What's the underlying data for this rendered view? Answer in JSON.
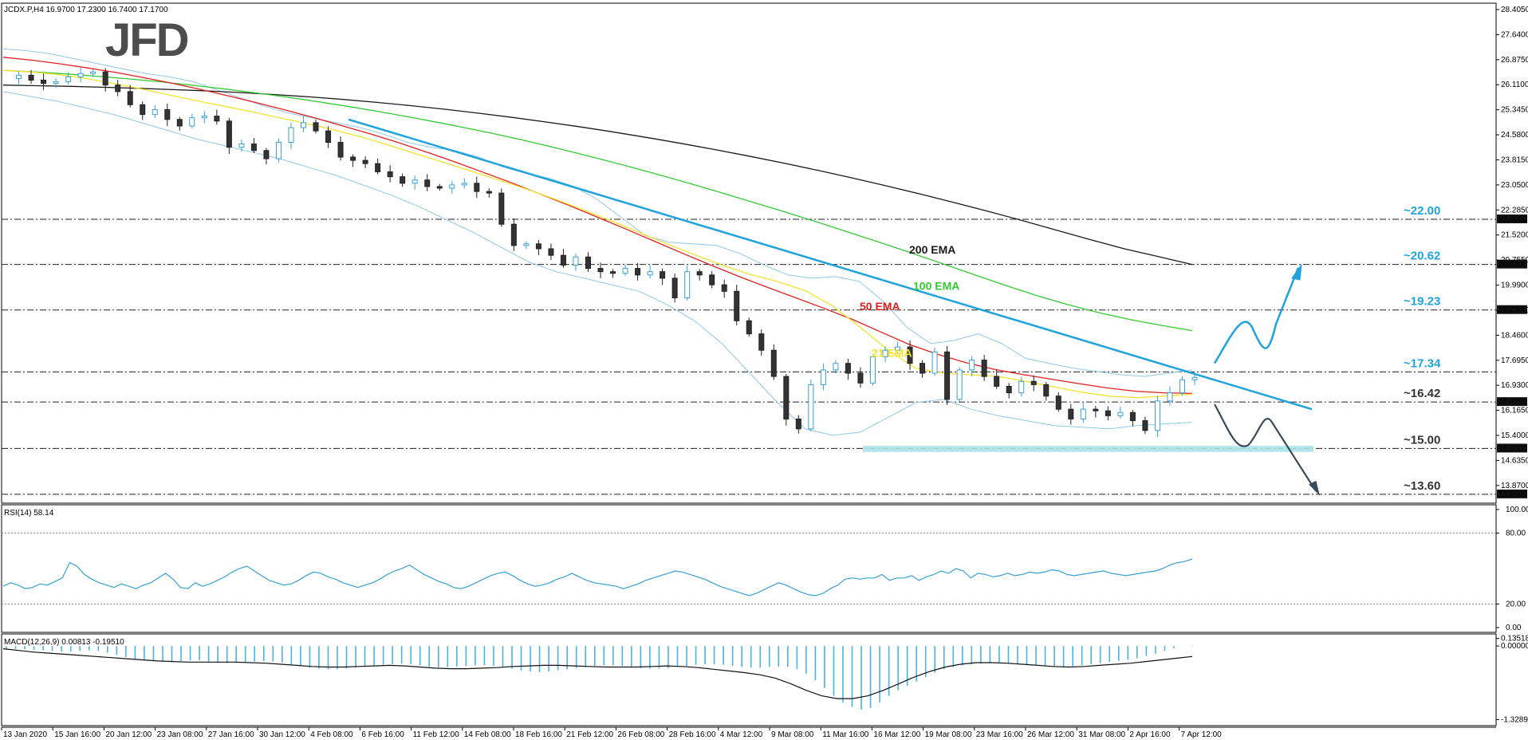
{
  "header": {
    "info": "JCDX.P,H4  16.9700 17.2300 16.7400 17.1700"
  },
  "logo": {
    "text": "JFD"
  },
  "colors": {
    "ema21": "#f2e330",
    "ema50": "#e02020",
    "ema100": "#35c935",
    "ema200": "#1a1a1a",
    "bollinger": "#8fc9ea",
    "trendline": "#1fa3dd",
    "arrow_up": "#1fa3dd",
    "arrow_down": "#3a4a56",
    "support_zone": "#a8e3ea",
    "level_label_blue": "#1fa3dd",
    "level_label_dark": "#333333"
  },
  "chart_data": [
    {
      "type": "candlestick",
      "symbol": "JCDX.P",
      "timeframe": "H4",
      "ohlc_last": {
        "open": 16.97,
        "high": 17.23,
        "low": 16.74,
        "close": 17.17
      },
      "ylim": [
        13.33,
        28.6
      ],
      "y_ticks": [
        "28.4050",
        "27.6400",
        "26.8750",
        "26.1100",
        "25.3450",
        "24.5800",
        "23.8150",
        "23.0500",
        "22.2850",
        "21.5200",
        "20.7550",
        "19.9900",
        "19.2250",
        "18.4600",
        "17.6950",
        "16.9300",
        "16.1650",
        "15.4000",
        "14.6350",
        "13.8700"
      ],
      "x_ticks": [
        "13 Jan 2020",
        "15 Jan 16:00",
        "20 Jan 12:00",
        "23 Jan 08:00",
        "27 Jan 16:00",
        "30 Jan 12:00",
        "4 Feb 08:00",
        "6 Feb 16:00",
        "11 Feb 12:00",
        "14 Feb 08:00",
        "18 Feb 16:00",
        "21 Feb 12:00",
        "26 Feb 08:00",
        "28 Feb 16:00",
        "4 Mar 12:00",
        "9 Mar 08:00",
        "11 Mar 16:00",
        "16 Mar 12:00",
        "19 Mar 08:00",
        "23 Mar 16:00",
        "26 Mar 12:00",
        "31 Mar 08:00",
        "2 Apr 16:00",
        "7 Apr 12:00"
      ],
      "price_path": [
        26.3,
        26.4,
        26.25,
        26.15,
        26.2,
        26.35,
        26.45,
        26.5,
        26.1,
        25.9,
        25.5,
        25.2,
        25.35,
        25.05,
        24.85,
        25.1,
        25.15,
        25.0,
        24.2,
        24.3,
        24.1,
        23.85,
        24.35,
        24.8,
        24.95,
        24.7,
        24.35,
        23.9,
        23.8,
        23.7,
        23.45,
        23.3,
        23.1,
        23.2,
        23.0,
        22.95,
        23.05,
        23.1,
        22.85,
        22.8,
        21.85,
        21.2,
        21.25,
        21.1,
        20.9,
        20.6,
        20.85,
        20.5,
        20.4,
        20.35,
        20.5,
        20.3,
        20.4,
        20.2,
        19.6,
        20.4,
        20.3,
        20.0,
        19.8,
        18.9,
        18.5,
        18.0,
        17.2,
        15.9,
        15.6,
        16.95,
        17.4,
        17.6,
        17.3,
        17.0,
        17.8,
        18.0,
        18.1,
        17.6,
        17.3,
        17.95,
        16.5,
        17.4,
        17.7,
        17.2,
        16.9,
        16.7,
        17.05,
        16.95,
        16.6,
        16.2,
        15.9,
        16.2,
        16.15,
        16.0,
        16.1,
        15.85,
        15.55,
        16.45,
        16.7,
        17.1,
        17.17
      ],
      "ema21": [
        26.55,
        26.5,
        26.42,
        26.3,
        26.15,
        25.98,
        25.8,
        25.62,
        25.45,
        25.28,
        25.1,
        24.92,
        24.72,
        24.5,
        24.25,
        23.98,
        23.72,
        23.45,
        23.18,
        22.9,
        22.6,
        22.28,
        21.95,
        21.6,
        21.25,
        20.92,
        20.6,
        20.32,
        20.1,
        19.82,
        19.35,
        18.7,
        18.0,
        17.45,
        17.3,
        17.25,
        17.2,
        17.05,
        16.88,
        16.72,
        16.6,
        16.55,
        16.6,
        16.66
      ],
      "ema50": [
        26.95,
        26.86,
        26.75,
        26.62,
        26.48,
        26.32,
        26.15,
        25.96,
        25.76,
        25.55,
        25.33,
        25.1,
        24.85,
        24.6,
        24.33,
        24.04,
        23.74,
        23.42,
        23.1,
        22.76,
        22.42,
        22.06,
        21.7,
        21.33,
        20.96,
        20.6,
        20.25,
        19.92,
        19.6,
        19.28,
        18.94,
        18.56,
        18.18,
        17.88,
        17.62,
        17.42,
        17.26,
        17.12,
        16.98,
        16.85,
        16.75,
        16.7,
        16.68
      ],
      "ema100": [
        26.55,
        26.5,
        26.44,
        26.37,
        26.29,
        26.2,
        26.1,
        25.99,
        25.87,
        25.74,
        25.6,
        25.45,
        25.29,
        25.12,
        24.94,
        24.75,
        24.55,
        24.33,
        24.1,
        23.86,
        23.61,
        23.35,
        23.08,
        22.8,
        22.51,
        22.22,
        21.92,
        21.61,
        21.3,
        20.98,
        20.65,
        20.32,
        19.99,
        19.68,
        19.4,
        19.15,
        18.94,
        18.76,
        18.6
      ],
      "ema200": [
        26.1,
        26.08,
        26.06,
        26.03,
        26.0,
        25.96,
        25.92,
        25.87,
        25.81,
        25.74,
        25.66,
        25.57,
        25.47,
        25.36,
        25.24,
        25.11,
        24.97,
        24.82,
        24.66,
        24.49,
        24.31,
        24.12,
        23.92,
        23.71,
        23.49,
        23.26,
        23.02,
        22.77,
        22.51,
        22.24,
        21.96,
        21.67,
        21.38,
        21.1,
        20.86,
        20.62
      ],
      "bollinger_upper": [
        27.2,
        27.15,
        27.05,
        26.9,
        26.75,
        26.6,
        26.45,
        26.35,
        26.2,
        25.95,
        25.7,
        25.45,
        25.25,
        25.1,
        24.95,
        24.8,
        24.6,
        24.35,
        24.2,
        24.1,
        23.9,
        23.6,
        23.4,
        23.25,
        23.0,
        22.6,
        22.05,
        21.5,
        21.3,
        21.25,
        21.2,
        20.95,
        20.6,
        20.3,
        20.2,
        20.25,
        20.1,
        19.5,
        18.7,
        18.2,
        18.3,
        18.5,
        18.2,
        17.75,
        17.6,
        17.45,
        17.35,
        17.25,
        17.2,
        17.3,
        17.4
      ],
      "bollinger_lower": [
        25.9,
        25.75,
        25.6,
        25.4,
        25.2,
        24.95,
        24.7,
        24.45,
        24.25,
        24.05,
        23.85,
        23.6,
        23.35,
        23.05,
        22.75,
        22.4,
        22.0,
        21.6,
        21.15,
        20.7,
        20.4,
        20.2,
        20.0,
        19.8,
        19.4,
        18.9,
        18.2,
        17.3,
        16.4,
        15.6,
        15.4,
        15.5,
        15.95,
        16.4,
        16.5,
        16.2,
        16.0,
        15.85,
        15.7,
        15.65,
        15.6,
        15.7,
        15.75,
        15.8
      ]
    },
    {
      "type": "line",
      "indicator": "RSI",
      "label": "RSI(14) 58.14",
      "value": 58.14,
      "ylim": [
        0,
        100
      ],
      "y_ticks": [
        "100.00",
        "80.00",
        "20.00",
        "0.00"
      ],
      "levels": [
        80,
        20
      ],
      "values": [
        35,
        38,
        36,
        33,
        34,
        37,
        36,
        39,
        42,
        55,
        52,
        45,
        41,
        38,
        36,
        34,
        37,
        35,
        33,
        36,
        38,
        42,
        46,
        41,
        34,
        33,
        38,
        35,
        37,
        40,
        43,
        47,
        50,
        52,
        48,
        44,
        40,
        38,
        36,
        37,
        40,
        44,
        47,
        46,
        43,
        41,
        38,
        36,
        34,
        36,
        38,
        41,
        45,
        48,
        50,
        53,
        49,
        45,
        42,
        39,
        37,
        34,
        33,
        35,
        38,
        41,
        44,
        46,
        47,
        44,
        40,
        37,
        35,
        36,
        38,
        41,
        43,
        46,
        43,
        40,
        38,
        37,
        36,
        35,
        33,
        35,
        37,
        40,
        42,
        44,
        46,
        48,
        47,
        45,
        43,
        41,
        38,
        35,
        33,
        31,
        29,
        27,
        29,
        32,
        35,
        38,
        36,
        33,
        30,
        28,
        27,
        29,
        33,
        36,
        41,
        42,
        41,
        42,
        42,
        45,
        40,
        42,
        42,
        44,
        40,
        43,
        45,
        48,
        46,
        50,
        48,
        42,
        46,
        45,
        43,
        44,
        46,
        44,
        45,
        47,
        46,
        47,
        49,
        48,
        45,
        44,
        45,
        46,
        47,
        48,
        46,
        45,
        44,
        45,
        46,
        47,
        48,
        50,
        53,
        55,
        56,
        58.14
      ]
    },
    {
      "type": "bar",
      "indicator": "MACD",
      "label": "MACD(12,26,9) 0.00813 -0.19510",
      "macd": 0.00813,
      "signal": -0.1951,
      "ylim": [
        -1.38,
        0.16
      ],
      "y_ticks": [
        "0.13518",
        "0.00000",
        "-1.32897"
      ],
      "histogram": [
        -0.05,
        -0.05,
        -0.06,
        -0.07,
        -0.08,
        -0.09,
        -0.1,
        -0.1,
        -0.09,
        -0.08,
        -0.09,
        -0.12,
        -0.16,
        -0.2,
        -0.23,
        -0.25,
        -0.27,
        -0.28,
        -0.28,
        -0.27,
        -0.26,
        -0.26,
        -0.28,
        -0.3,
        -0.31,
        -0.3,
        -0.29,
        -0.28,
        -0.27,
        -0.28,
        -0.3,
        -0.33,
        -0.36,
        -0.39,
        -0.41,
        -0.42,
        -0.42,
        -0.41,
        -0.39,
        -0.37,
        -0.35,
        -0.34,
        -0.33,
        -0.32,
        -0.33,
        -0.35,
        -0.37,
        -0.38,
        -0.38,
        -0.37,
        -0.36,
        -0.35,
        -0.35,
        -0.36,
        -0.38,
        -0.41,
        -0.44,
        -0.46,
        -0.47,
        -0.46,
        -0.44,
        -0.42,
        -0.4,
        -0.38,
        -0.36,
        -0.35,
        -0.35,
        -0.36,
        -0.38,
        -0.4,
        -0.41,
        -0.41,
        -0.4,
        -0.38,
        -0.36,
        -0.34,
        -0.33,
        -0.33,
        -0.34,
        -0.36,
        -0.38,
        -0.39,
        -0.39,
        -0.38,
        -0.37,
        -0.38,
        -0.42,
        -0.5,
        -0.62,
        -0.76,
        -0.9,
        -1.02,
        -1.1,
        -1.15,
        -1.12,
        -1.02,
        -0.9,
        -0.8,
        -0.72,
        -0.64,
        -0.56,
        -0.48,
        -0.42,
        -0.38,
        -0.35,
        -0.33,
        -0.32,
        -0.31,
        -0.31,
        -0.32,
        -0.33,
        -0.34,
        -0.35,
        -0.36,
        -0.37,
        -0.37,
        -0.36,
        -0.35,
        -0.33,
        -0.31,
        -0.29,
        -0.27,
        -0.25,
        -0.22,
        -0.18,
        -0.14,
        -0.09,
        -0.04,
        0.0,
        0.008
      ],
      "signal_line": [
        -0.05,
        -0.08,
        -0.11,
        -0.13,
        -0.15,
        -0.17,
        -0.19,
        -0.21,
        -0.23,
        -0.25,
        -0.27,
        -0.28,
        -0.29,
        -0.29,
        -0.29,
        -0.29,
        -0.3,
        -0.31,
        -0.33,
        -0.35,
        -0.37,
        -0.38,
        -0.38,
        -0.37,
        -0.36,
        -0.35,
        -0.36,
        -0.38,
        -0.4,
        -0.41,
        -0.41,
        -0.4,
        -0.39,
        -0.37,
        -0.36,
        -0.35,
        -0.35,
        -0.36,
        -0.37,
        -0.38,
        -0.38,
        -0.38,
        -0.37,
        -0.36,
        -0.37,
        -0.39,
        -0.42,
        -0.45,
        -0.48,
        -0.52,
        -0.58,
        -0.68,
        -0.8,
        -0.9,
        -0.95,
        -0.95,
        -0.9,
        -0.8,
        -0.68,
        -0.56,
        -0.46,
        -0.38,
        -0.33,
        -0.3,
        -0.3,
        -0.31,
        -0.33,
        -0.35,
        -0.37,
        -0.38,
        -0.37,
        -0.35,
        -0.33,
        -0.31,
        -0.28,
        -0.25,
        -0.22,
        -0.19
      ]
    }
  ],
  "ema_labels": {
    "ema200": "200 EMA",
    "ema100": "100 EMA",
    "ema50": "50 EMA",
    "ema21": "21 EMA"
  },
  "levels": [
    {
      "value": 22.0,
      "label": "~22.00",
      "tag": "22.0000",
      "style": "blue"
    },
    {
      "value": 20.62,
      "label": "~20.62",
      "tag": "20.6200",
      "style": "blue"
    },
    {
      "value": 19.23,
      "label": "~19.23",
      "tag": "19.2300",
      "style": "blue"
    },
    {
      "value": 17.34,
      "label": "~17.34",
      "tag": "",
      "style": "blue"
    },
    {
      "value": 16.42,
      "label": "~16.42",
      "tag": "16.4200",
      "style": "dark"
    },
    {
      "value": 15.0,
      "label": "~15.00",
      "tag": "15.0000",
      "style": "dark"
    },
    {
      "value": 13.6,
      "label": "~13.60",
      "tag": "13.6000",
      "style": "dark"
    }
  ],
  "trendline": {
    "from": {
      "x_tick": "6 Feb 16:00",
      "price": 25.05
    },
    "to_price": 16.2
  }
}
